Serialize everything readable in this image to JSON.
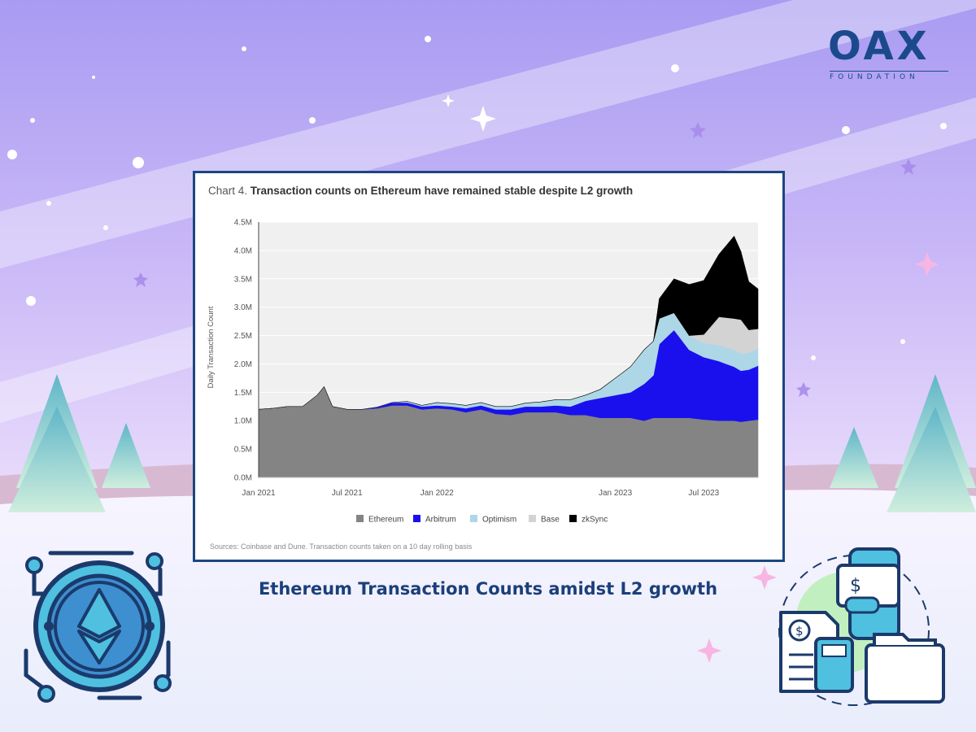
{
  "brand": {
    "name": "OAX",
    "tagline": "FOUNDATION"
  },
  "caption": "Ethereum Transaction Counts amidst L2 growth",
  "icons": [
    "ethereum-coin-icon",
    "invoice-documents-icon",
    "sparkle-icon"
  ],
  "colors": {
    "card_border": "#1c4680",
    "caption": "#1b3f7a",
    "ethereum": "#848484",
    "arbitrum": "#1a10ee",
    "optimism": "#add7e6",
    "base": "#d3d3d3",
    "zksync": "#000000"
  },
  "chart_data": {
    "type": "area",
    "stacked": true,
    "title_prefix": "Chart 4.",
    "title": "Transaction counts on Ethereum have remained stable despite L2 growth",
    "ylabel": "Daily Transaction Count",
    "xlabel": "",
    "ylim": [
      0,
      4.5
    ],
    "y_unit": "M",
    "yticks": [
      "0.0M",
      "0.5M",
      "1.0M",
      "1.5M",
      "2.0M",
      "2.5M",
      "3.0M",
      "3.5M",
      "4.0M",
      "4.5M"
    ],
    "xticks": [
      "Jan 2021",
      "Jul 2021",
      "Jan 2022",
      "Jan 2023",
      "Jul 2023"
    ],
    "x": [
      "2021-01-01",
      "2021-02-01",
      "2021-03-01",
      "2021-04-01",
      "2021-05-01",
      "2021-05-15",
      "2021-06-01",
      "2021-07-01",
      "2021-08-01",
      "2021-09-01",
      "2021-10-01",
      "2021-11-01",
      "2021-12-01",
      "2022-01-01",
      "2022-02-01",
      "2022-03-01",
      "2022-04-01",
      "2022-05-01",
      "2022-06-01",
      "2022-07-01",
      "2022-08-01",
      "2022-09-01",
      "2022-10-01",
      "2022-11-01",
      "2022-12-01",
      "2023-01-01",
      "2023-02-01",
      "2023-03-01",
      "2023-03-20",
      "2023-04-01",
      "2023-05-01",
      "2023-06-01",
      "2023-07-01",
      "2023-08-01",
      "2023-09-01",
      "2023-09-15",
      "2023-10-01",
      "2023-10-20"
    ],
    "series": [
      {
        "name": "Ethereum",
        "color": "#848484",
        "values": [
          1.2,
          1.22,
          1.25,
          1.25,
          1.45,
          1.6,
          1.25,
          1.2,
          1.2,
          1.22,
          1.27,
          1.27,
          1.2,
          1.22,
          1.2,
          1.15,
          1.2,
          1.12,
          1.1,
          1.15,
          1.15,
          1.15,
          1.1,
          1.1,
          1.05,
          1.05,
          1.05,
          1.0,
          1.05,
          1.05,
          1.05,
          1.05,
          1.02,
          1.0,
          1.0,
          0.98,
          1.0,
          1.02
        ]
      },
      {
        "name": "Arbitrum",
        "color": "#1a10ee",
        "values": [
          0,
          0,
          0,
          0,
          0,
          0,
          0,
          0,
          0,
          0.02,
          0.05,
          0.05,
          0.05,
          0.05,
          0.05,
          0.07,
          0.07,
          0.08,
          0.1,
          0.1,
          0.1,
          0.12,
          0.15,
          0.25,
          0.35,
          0.4,
          0.45,
          0.65,
          0.75,
          1.3,
          1.55,
          1.2,
          1.1,
          1.05,
          0.95,
          0.9,
          0.9,
          0.95
        ]
      },
      {
        "name": "Optimism",
        "color": "#add7e6",
        "values": [
          0,
          0,
          0,
          0,
          0,
          0,
          0,
          0,
          0,
          0,
          0,
          0.02,
          0.02,
          0.05,
          0.05,
          0.05,
          0.05,
          0.05,
          0.05,
          0.06,
          0.08,
          0.1,
          0.12,
          0.1,
          0.15,
          0.3,
          0.45,
          0.6,
          0.6,
          0.45,
          0.3,
          0.25,
          0.25,
          0.28,
          0.3,
          0.3,
          0.3,
          0.3
        ]
      },
      {
        "name": "Base",
        "color": "#d3d3d3",
        "values": [
          0,
          0,
          0,
          0,
          0,
          0,
          0,
          0,
          0,
          0,
          0,
          0,
          0,
          0,
          0,
          0,
          0,
          0,
          0,
          0,
          0,
          0,
          0,
          0,
          0,
          0,
          0,
          0,
          0,
          0,
          0,
          0,
          0.15,
          0.5,
          0.55,
          0.6,
          0.4,
          0.35
        ]
      },
      {
        "name": "zkSync",
        "color": "#000000",
        "values": [
          0,
          0,
          0,
          0,
          0,
          0,
          0,
          0,
          0,
          0,
          0,
          0,
          0,
          0,
          0,
          0,
          0,
          0,
          0,
          0,
          0,
          0,
          0,
          0,
          0,
          0,
          0,
          0,
          0,
          0.35,
          0.6,
          0.9,
          0.95,
          1.1,
          1.45,
          1.2,
          0.85,
          0.7
        ]
      }
    ],
    "grid": true,
    "legend_position": "bottom",
    "source": "Sources: Coinbase and Dune. Transaction counts taken on a 10 day rolling basis"
  }
}
